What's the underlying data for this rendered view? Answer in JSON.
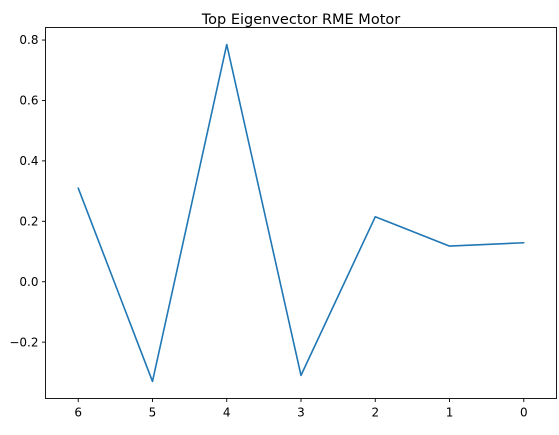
{
  "chart_data": {
    "type": "line",
    "title": "Top Eigenvector RME Motor",
    "xlabel": "",
    "ylabel": "",
    "categories": [
      "6",
      "5",
      "4",
      "3",
      "2",
      "1",
      "0"
    ],
    "series": [
      {
        "values": [
          0.31,
          -0.33,
          0.785,
          -0.31,
          0.215,
          0.118,
          0.129
        ],
        "color": "#1f77b4"
      }
    ],
    "yticks": [
      -0.2,
      0.0,
      0.2,
      0.4,
      0.6,
      0.8
    ],
    "ytick_labels": [
      "−0.2",
      "0.0",
      "0.2",
      "0.4",
      "0.6",
      "0.8"
    ],
    "ylim": [
      -0.3865,
      0.8415
    ],
    "grid": false,
    "legend": false
  }
}
